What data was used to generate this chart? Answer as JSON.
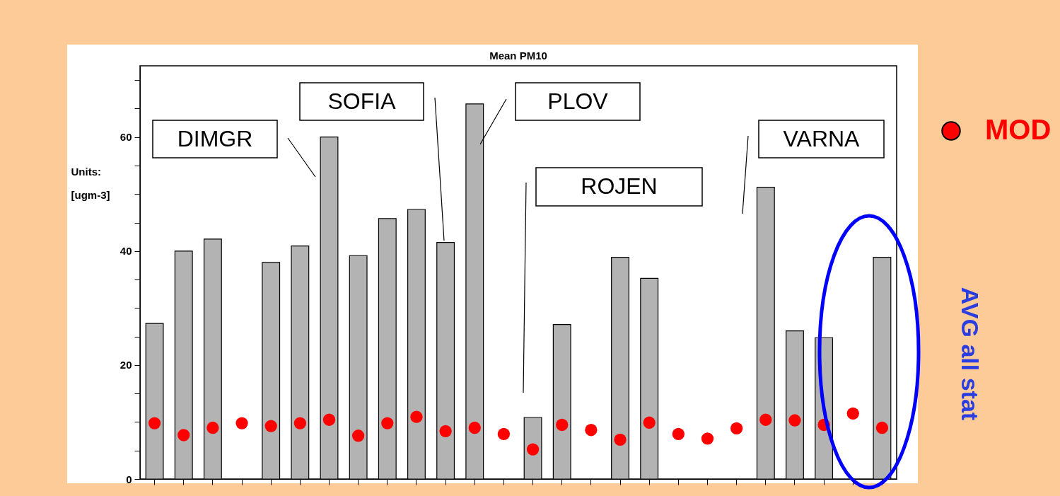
{
  "chart_data": {
    "type": "bar",
    "title": "Mean PM10",
    "ylabel": "Units: [ugm-3]",
    "categories": [
      null,
      null,
      null,
      null,
      null,
      null,
      null,
      null,
      null,
      null,
      null,
      null,
      null,
      null,
      null,
      null,
      null,
      null,
      null,
      null,
      null,
      null,
      null,
      null,
      null,
      null
    ],
    "series": [
      {
        "type": "bar",
        "color": "#b3b3b3",
        "values": [
          27.3,
          40.0,
          42.1,
          null,
          38.0,
          40.9,
          60.0,
          39.2,
          45.7,
          47.3,
          41.5,
          65.8,
          null,
          10.8,
          27.1,
          null,
          38.9,
          35.2,
          null,
          null,
          null,
          51.2,
          26.0,
          24.8,
          null,
          38.9
        ]
      },
      {
        "type": "scatter",
        "name": "MOD",
        "color": "#ff0000",
        "values": [
          9.8,
          7.7,
          9.0,
          9.8,
          9.3,
          9.8,
          10.4,
          7.6,
          9.8,
          10.9,
          8.4,
          9.0,
          7.9,
          5.2,
          9.5,
          8.6,
          6.9,
          9.9,
          7.9,
          7.1,
          8.9,
          10.4,
          10.3,
          9.5,
          11.5,
          9.0
        ]
      }
    ],
    "ylim": [
      0,
      72.5
    ],
    "yticks": [
      0,
      {
        "value": 5,
        "label": null
      },
      {
        "value": 10,
        "label": null
      },
      {
        "value": 15,
        "label": null
      },
      20,
      {
        "value": 25,
        "label": null
      },
      {
        "value": 30,
        "label": null
      },
      {
        "value": 35,
        "label": null
      },
      40,
      {
        "value": 45,
        "label": null
      },
      {
        "value": 50,
        "label": null
      },
      {
        "value": 55,
        "label": null
      },
      60,
      {
        "value": 65,
        "label": null
      },
      {
        "value": 70,
        "label": null
      }
    ],
    "grid": false,
    "legend": "right",
    "marker": "circle",
    "tick_labels": "y",
    "annotations": [
      "DIMGR",
      "SOFIA",
      "PLOV",
      "ROJEN",
      "VARNA",
      "AVG all stat"
    ]
  }
}
